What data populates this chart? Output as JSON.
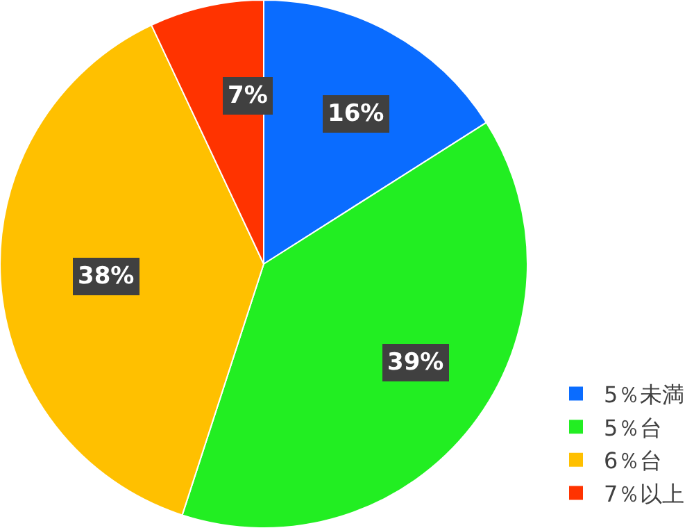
{
  "chart_data": {
    "type": "pie",
    "categories": [
      "5％未満",
      "5％台",
      "6％台",
      "7％以上"
    ],
    "values": [
      16,
      39,
      38,
      7
    ],
    "value_labels": [
      "16%",
      "39%",
      "38%",
      "7%"
    ],
    "colors": [
      "#0a6cff",
      "#22ee22",
      "#ffc000",
      "#ff3300"
    ],
    "legend": "bottom right"
  }
}
